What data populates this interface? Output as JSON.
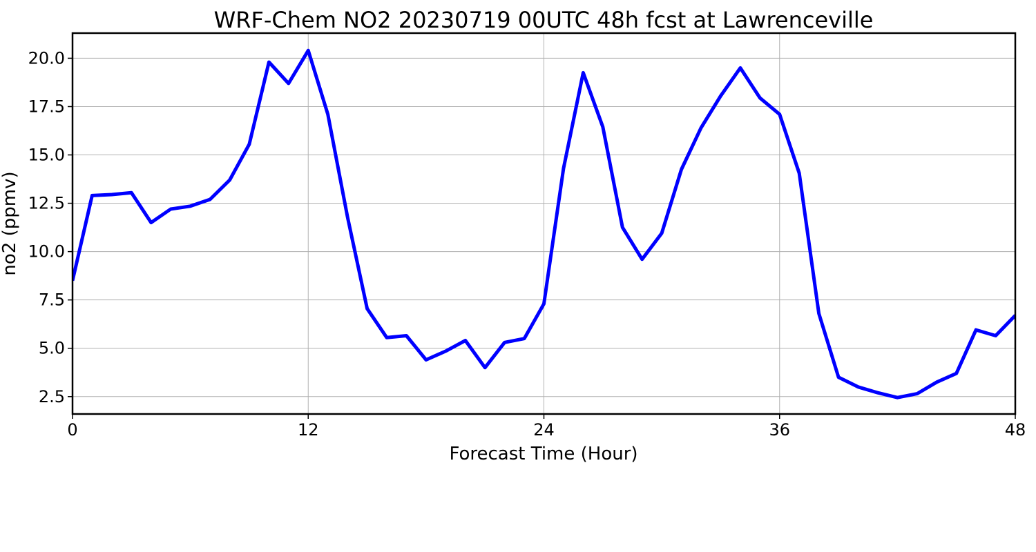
{
  "chart_data": {
    "type": "line",
    "title": "WRF-Chem NO2  20230719 00UTC 48h fcst at Lawrenceville",
    "xlabel": "Forecast Time (Hour)",
    "ylabel": "no2  (ppmv)",
    "xlim": [
      0,
      48
    ],
    "ylim": [
      1.6,
      21.3
    ],
    "xticks": [
      0,
      12,
      24,
      36,
      48
    ],
    "xtick_labels": [
      "0",
      "12",
      "24",
      "36",
      "48"
    ],
    "yticks": [
      2.5,
      5.0,
      7.5,
      10.0,
      12.5,
      15.0,
      17.5,
      20.0
    ],
    "ytick_labels": [
      "2.5",
      "5.0",
      "7.5",
      "10.0",
      "12.5",
      "15.0",
      "17.5",
      "20.0"
    ],
    "grid": true,
    "series": [
      {
        "color": "#0000ff",
        "x": [
          0,
          1,
          2,
          3,
          4,
          5,
          6,
          7,
          8,
          9,
          10,
          11,
          12,
          13,
          14,
          15,
          16,
          17,
          18,
          19,
          20,
          21,
          22,
          23,
          24,
          25,
          26,
          27,
          28,
          29,
          30,
          31,
          32,
          33,
          34,
          35,
          36,
          37,
          38,
          39,
          40,
          41,
          42,
          43,
          44,
          45,
          46,
          47,
          48
        ],
        "values": [
          8.5,
          12.9,
          12.95,
          13.05,
          11.5,
          12.2,
          12.35,
          12.7,
          13.7,
          15.55,
          19.8,
          18.7,
          20.4,
          17.1,
          11.8,
          7.05,
          5.55,
          5.65,
          4.4,
          4.85,
          5.4,
          4.0,
          5.3,
          5.5,
          7.3,
          14.3,
          19.25,
          16.45,
          11.25,
          9.6,
          10.95,
          14.25,
          16.4,
          18.05,
          19.5,
          17.95,
          17.1,
          14.05,
          6.8,
          3.5,
          3.0,
          2.7,
          2.45,
          2.65,
          3.25,
          3.7,
          5.95,
          5.65,
          6.7
        ]
      }
    ]
  }
}
